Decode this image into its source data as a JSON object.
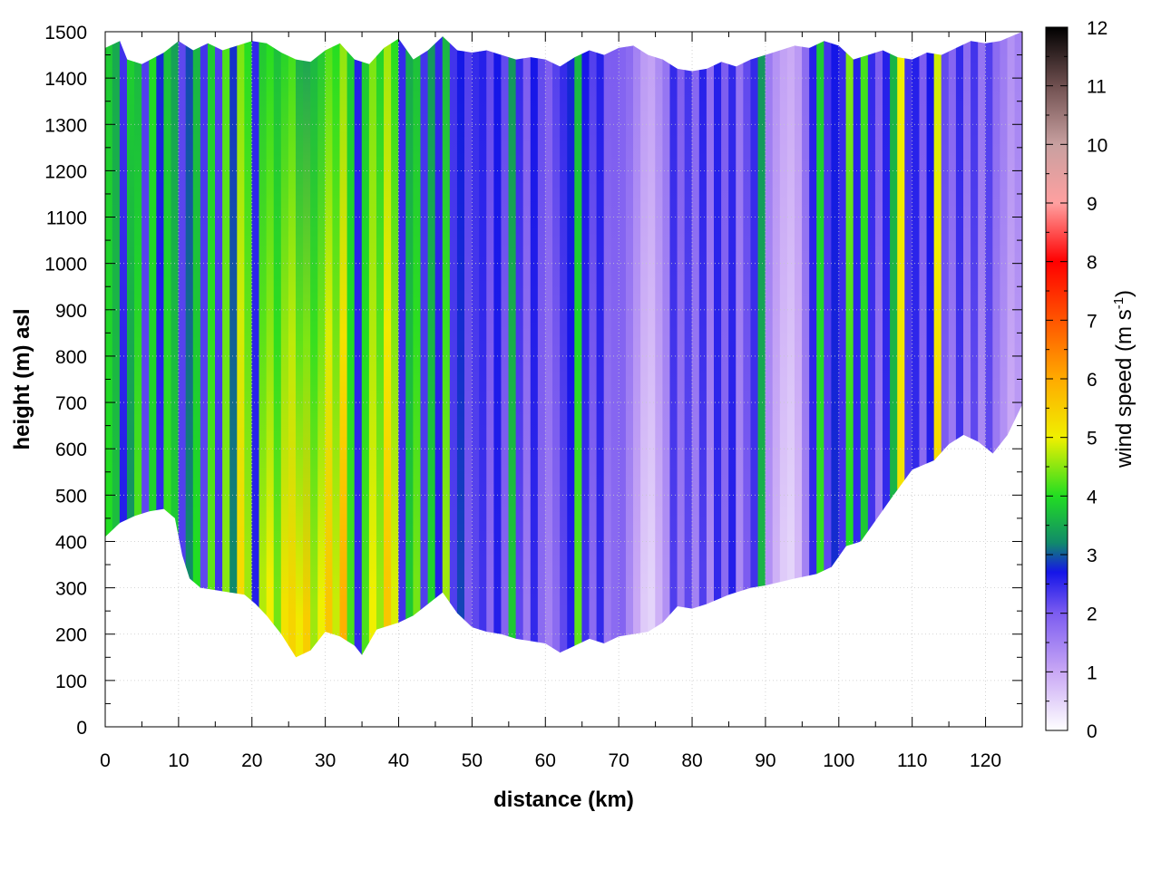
{
  "chart_data": {
    "type": "heatmap",
    "subtype": "vertical cross-section (curtain) of wind speed above terrain",
    "xlabel": "distance (km)",
    "ylabel": "height (m) asl",
    "colorbar_label": "wind speed (m s",
    "colorbar_label_sup": "-1",
    "colorbar_label_end": ")",
    "xlim": [
      0,
      125
    ],
    "ylim": [
      0,
      1500
    ],
    "zlim": [
      0,
      12
    ],
    "xticks": [
      "0",
      "10",
      "20",
      "30",
      "40",
      "50",
      "60",
      "70",
      "80",
      "90",
      "100",
      "110",
      "120"
    ],
    "yticks": [
      "0",
      "100",
      "200",
      "300",
      "400",
      "500",
      "600",
      "700",
      "800",
      "900",
      "1000",
      "1100",
      "1200",
      "1300",
      "1400",
      "1500"
    ],
    "cbticks": [
      "0",
      "1",
      "2",
      "3",
      "4",
      "5",
      "6",
      "7",
      "8",
      "9",
      "10",
      "11",
      "12"
    ],
    "grid": true,
    "colormap": [
      {
        "v": 0,
        "color": "#ffffff"
      },
      {
        "v": 1,
        "color": "#c9a8f5"
      },
      {
        "v": 2,
        "color": "#7c5cf0"
      },
      {
        "v": 2.7,
        "color": "#1515e8"
      },
      {
        "v": 3.2,
        "color": "#118a6a"
      },
      {
        "v": 4,
        "color": "#22dd22"
      },
      {
        "v": 5,
        "color": "#f0f000"
      },
      {
        "v": 6,
        "color": "#ffaa00"
      },
      {
        "v": 7,
        "color": "#ff5500"
      },
      {
        "v": 8,
        "color": "#ff0000"
      },
      {
        "v": 9,
        "color": "#ffa0a0"
      },
      {
        "v": 10,
        "color": "#c8a0a0"
      },
      {
        "v": 11,
        "color": "#705050"
      },
      {
        "v": 12,
        "color": "#000000"
      }
    ],
    "terrain_height_m": {
      "x": [
        0,
        2,
        4,
        6,
        8,
        9.5,
        10.5,
        11.5,
        13,
        15,
        17,
        19,
        20.5,
        22,
        24,
        26,
        28,
        30,
        32,
        34,
        35,
        37,
        40,
        42,
        44,
        46,
        48,
        50,
        52,
        54,
        56,
        58,
        60,
        62,
        64,
        66,
        68,
        70,
        72,
        74,
        76,
        78,
        80,
        82,
        85,
        88,
        90,
        94,
        97,
        99,
        101,
        103,
        105,
        107,
        110,
        113,
        115,
        117,
        119,
        121,
        123,
        125
      ],
      "y": [
        410,
        440,
        455,
        465,
        470,
        450,
        370,
        320,
        300,
        295,
        290,
        285,
        265,
        240,
        200,
        150,
        165,
        205,
        195,
        175,
        155,
        210,
        225,
        240,
        265,
        290,
        245,
        215,
        205,
        200,
        190,
        185,
        180,
        160,
        175,
        190,
        180,
        195,
        200,
        205,
        225,
        260,
        255,
        265,
        285,
        300,
        305,
        320,
        330,
        345,
        390,
        400,
        445,
        490,
        555,
        575,
        610,
        630,
        615,
        590,
        630,
        695
      ]
    },
    "top_boundary_m": {
      "x": [
        0,
        2,
        3,
        5,
        8,
        10,
        12,
        14,
        16,
        18,
        20,
        22,
        24,
        26,
        28,
        30,
        32,
        34,
        36,
        38,
        40,
        42,
        44,
        46,
        48,
        50,
        52,
        54,
        56,
        58,
        60,
        62,
        64,
        66,
        68,
        70,
        72,
        74,
        76,
        78,
        80,
        82,
        84,
        86,
        88,
        90,
        92,
        94,
        96,
        98,
        100,
        102,
        104,
        106,
        108,
        110,
        112,
        114,
        116,
        118,
        120,
        122,
        125
      ],
      "y": [
        1465,
        1480,
        1440,
        1430,
        1455,
        1480,
        1460,
        1475,
        1460,
        1470,
        1480,
        1475,
        1455,
        1440,
        1435,
        1460,
        1475,
        1440,
        1430,
        1465,
        1485,
        1440,
        1460,
        1490,
        1460,
        1455,
        1460,
        1450,
        1440,
        1445,
        1440,
        1425,
        1445,
        1460,
        1450,
        1465,
        1470,
        1450,
        1440,
        1420,
        1415,
        1420,
        1435,
        1425,
        1440,
        1450,
        1460,
        1470,
        1465,
        1480,
        1470,
        1440,
        1450,
        1460,
        1445,
        1440,
        1455,
        1450,
        1465,
        1480,
        1475,
        1480,
        1500
      ]
    },
    "wind_speed_profiles": {
      "x": [
        0.5,
        1.5,
        2.5,
        3.5,
        4.5,
        5.5,
        6.5,
        7.5,
        8.5,
        9.5,
        10.5,
        11.5,
        12.5,
        13.5,
        14.5,
        15.5,
        16.5,
        17.5,
        18.5,
        19.5,
        20.5,
        21.5,
        22.5,
        23.5,
        24.5,
        25.5,
        26.5,
        27.5,
        28.5,
        29.5,
        30.5,
        31.5,
        32.5,
        33.5,
        34.5,
        35.5,
        36.5,
        37.5,
        38.5,
        39.5,
        40.5,
        41.5,
        42.5,
        43.5,
        44.5,
        45.5,
        46.5,
        47.5,
        48.5,
        49.5,
        50.5,
        51.5,
        52.5,
        53.5,
        54.5,
        55.5,
        56.5,
        57.5,
        58.5,
        59.5,
        60.5,
        61.5,
        62.5,
        63.5,
        64.5,
        65.5,
        66.5,
        67.5,
        68.5,
        69.5,
        70.5,
        71.5,
        72.5,
        73.5,
        74.5,
        75.5,
        76.5,
        77.5,
        78.5,
        79.5,
        80.5,
        81.5,
        82.5,
        83.5,
        84.5,
        85.5,
        86.5,
        87.5,
        88.5,
        89.5,
        90.5,
        91.5,
        92.5,
        93.5,
        94.5,
        95.5,
        96.5,
        97.5,
        98.5,
        99.5,
        100.5,
        101.5,
        102.5,
        103.5,
        104.5,
        105.5,
        106.5,
        107.5,
        108.5,
        109.5,
        110.5,
        111.5,
        112.5,
        113.5,
        114.5,
        115.5,
        116.5,
        117.5,
        118.5,
        119.5,
        120.5,
        121.5,
        122.5,
        123.5,
        124.5
      ],
      "speed_low": [
        4.0,
        3.7,
        2.6,
        3.3,
        4.2,
        2.2,
        3.9,
        2.5,
        4.1,
        3.8,
        2.3,
        3.2,
        4.0,
        2.2,
        4.3,
        2.4,
        4.5,
        3.2,
        5.3,
        4.6,
        2.6,
        4.7,
        5.0,
        4.4,
        5.2,
        5.4,
        5.1,
        5.5,
        4.6,
        5.0,
        5.6,
        4.8,
        5.9,
        4.2,
        2.5,
        4.2,
        5.0,
        4.6,
        5.6,
        4.9,
        2.4,
        3.8,
        4.4,
        2.3,
        3.9,
        2.6,
        4.6,
        2.3,
        2.9,
        2.0,
        2.2,
        2.4,
        1.8,
        2.6,
        1.9,
        3.8,
        2.2,
        1.6,
        2.5,
        1.8,
        1.5,
        1.8,
        2.2,
        2.6,
        4.3,
        2.4,
        1.8,
        2.5,
        1.6,
        1.8,
        1.9,
        1.4,
        1.0,
        0.6,
        0.5,
        0.9,
        1.3,
        2.3,
        1.6,
        2.2,
        1.5,
        2.3,
        1.4,
        2.5,
        1.8,
        2.6,
        1.4,
        2.0,
        2.4,
        3.6,
        1.3,
        0.9,
        0.6,
        0.5,
        0.8,
        1.5,
        2.5,
        4.1,
        2.2,
        2.8,
        2.4,
        4.0,
        2.5,
        3.8,
        2.4,
        1.6,
        2.5,
        3.6,
        5.2,
        2.3,
        2.5,
        1.8,
        2.6,
        5.3,
        2.0,
        1.6,
        2.4,
        1.5,
        2.2,
        1.4,
        2.2,
        1.6,
        1.3,
        1.0,
        1.2
      ],
      "speed_high": [
        3.8,
        3.5,
        2.4,
        3.9,
        3.6,
        2.3,
        4.0,
        2.8,
        3.7,
        3.4,
        2.2,
        2.9,
        3.6,
        2.4,
        3.8,
        2.3,
        4.2,
        2.8,
        4.4,
        4.0,
        2.5,
        3.8,
        4.0,
        3.7,
        3.9,
        4.1,
        3.5,
        3.4,
        3.6,
        3.8,
        4.2,
        4.0,
        4.5,
        3.8,
        2.6,
        3.8,
        4.4,
        3.9,
        4.6,
        4.0,
        2.5,
        3.5,
        3.7,
        2.4,
        3.3,
        2.5,
        3.6,
        2.4,
        2.7,
        2.3,
        2.5,
        2.6,
        2.2,
        2.7,
        2.2,
        3.3,
        2.5,
        2.0,
        2.7,
        2.2,
        2.0,
        2.3,
        2.5,
        2.8,
        3.6,
        2.7,
        2.3,
        2.6,
        2.0,
        2.0,
        1.9,
        1.8,
        1.5,
        1.2,
        1.1,
        1.4,
        1.7,
        2.5,
        2.0,
        2.4,
        1.9,
        2.6,
        1.8,
        2.6,
        2.0,
        2.5,
        1.7,
        2.2,
        2.5,
        3.3,
        1.6,
        1.3,
        1.1,
        1.0,
        1.2,
        1.8,
        2.6,
        3.8,
        2.4,
        2.7,
        2.5,
        4.5,
        2.6,
        4.2,
        2.5,
        2.0,
        2.6,
        3.6,
        5.0,
        2.4,
        2.6,
        2.0,
        2.7,
        4.8,
        2.2,
        1.9,
        2.5,
        1.8,
        2.4,
        1.7,
        2.3,
        1.8,
        1.6,
        1.3,
        1.5
      ]
    }
  }
}
